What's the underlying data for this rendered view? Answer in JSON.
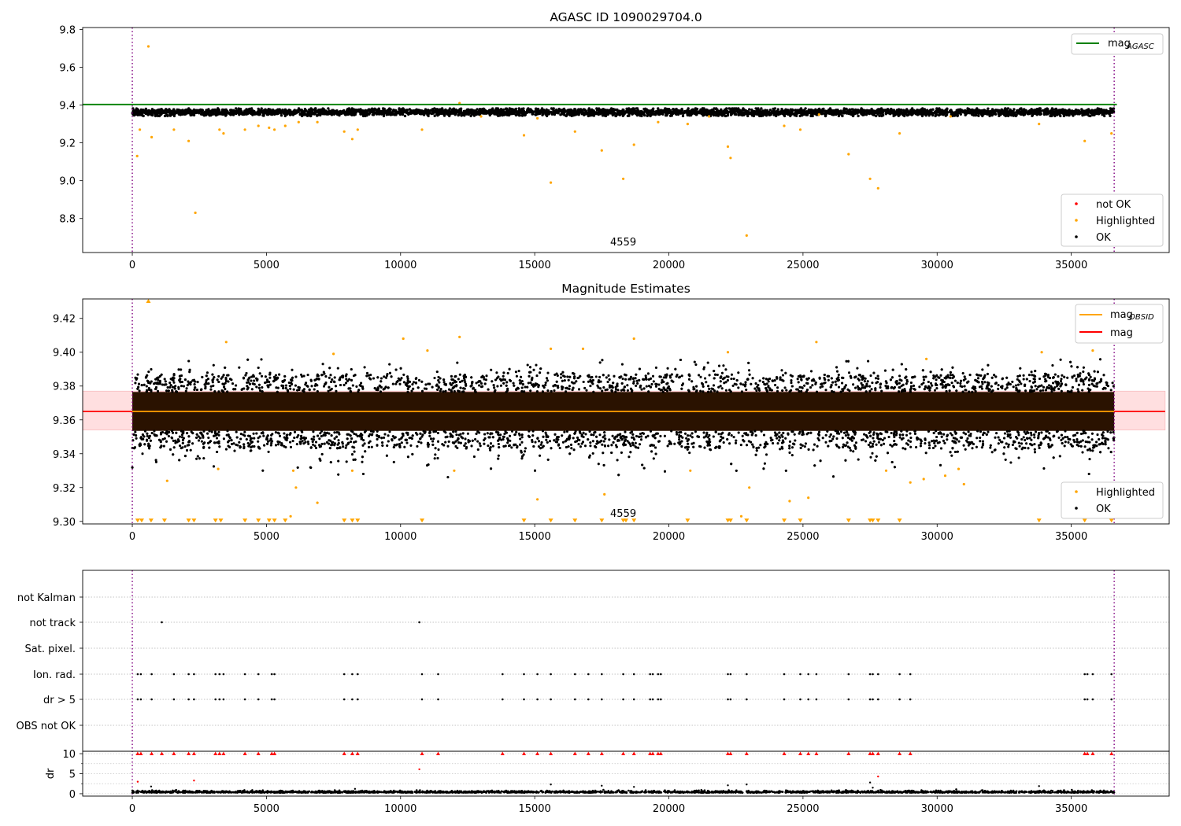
{
  "chart_data": [
    {
      "type": "scatter",
      "title": "AGASC ID 1090029704.0",
      "xlim": [
        -1850,
        38650
      ],
      "ylim": [
        8.62,
        9.81
      ],
      "xticks": [
        0,
        5000,
        10000,
        15000,
        20000,
        25000,
        30000,
        35000,
        40000
      ],
      "xtick_labels": [
        "0",
        "5000",
        "10000",
        "15000",
        "20000",
        "25000",
        "30000",
        "35000",
        "40000"
      ],
      "yticks": [
        8.8,
        9.0,
        9.2,
        9.4,
        9.6,
        9.8
      ],
      "ytick_labels": [
        "8.8",
        "9.0",
        "9.2",
        "9.4",
        "9.6",
        "9.8"
      ],
      "vlines": [
        0,
        36600
      ],
      "annotation": {
        "text": "4559",
        "x": 18300
      },
      "lines": [
        {
          "name": "mag",
          "name_sub": "AGASC",
          "y": 9.403,
          "x0": -1850,
          "x1": 36700,
          "color": "#008000"
        }
      ],
      "ok_band": {
        "center": 9.362,
        "spread": 0.018,
        "span": [
          0,
          36600
        ]
      },
      "highlighted_points": [
        {
          "x": 600,
          "y": 9.71
        },
        {
          "x": 180,
          "y": 9.13
        },
        {
          "x": 280,
          "y": 9.27
        },
        {
          "x": 720,
          "y": 9.23
        },
        {
          "x": 1550,
          "y": 9.27
        },
        {
          "x": 2100,
          "y": 9.21
        },
        {
          "x": 2350,
          "y": 8.83
        },
        {
          "x": 3250,
          "y": 9.27
        },
        {
          "x": 3400,
          "y": 9.25
        },
        {
          "x": 4200,
          "y": 9.27
        },
        {
          "x": 4700,
          "y": 9.29
        },
        {
          "x": 5100,
          "y": 9.28
        },
        {
          "x": 5300,
          "y": 9.27
        },
        {
          "x": 5700,
          "y": 9.29
        },
        {
          "x": 6200,
          "y": 9.31
        },
        {
          "x": 6900,
          "y": 9.31
        },
        {
          "x": 7900,
          "y": 9.26
        },
        {
          "x": 8200,
          "y": 9.22
        },
        {
          "x": 8400,
          "y": 9.27
        },
        {
          "x": 10800,
          "y": 9.27
        },
        {
          "x": 14600,
          "y": 9.24
        },
        {
          "x": 15100,
          "y": 9.33
        },
        {
          "x": 15600,
          "y": 8.99
        },
        {
          "x": 16500,
          "y": 9.26
        },
        {
          "x": 17500,
          "y": 9.16
        },
        {
          "x": 18300,
          "y": 9.01
        },
        {
          "x": 18700,
          "y": 9.19
        },
        {
          "x": 19600,
          "y": 9.31
        },
        {
          "x": 20700,
          "y": 9.3
        },
        {
          "x": 22200,
          "y": 9.18
        },
        {
          "x": 22300,
          "y": 9.12
        },
        {
          "x": 22900,
          "y": 8.71
        },
        {
          "x": 24300,
          "y": 9.29
        },
        {
          "x": 24900,
          "y": 9.27
        },
        {
          "x": 26700,
          "y": 9.14
        },
        {
          "x": 27500,
          "y": 9.01
        },
        {
          "x": 27800,
          "y": 8.96
        },
        {
          "x": 28600,
          "y": 9.25
        },
        {
          "x": 33800,
          "y": 9.3
        },
        {
          "x": 35500,
          "y": 9.21
        },
        {
          "x": 36500,
          "y": 9.25
        },
        {
          "x": 12200,
          "y": 9.41
        },
        {
          "x": 13000,
          "y": 9.34
        },
        {
          "x": 21500,
          "y": 9.34
        },
        {
          "x": 30500,
          "y": 9.34
        },
        {
          "x": 25600,
          "y": 9.35
        }
      ],
      "legend_top": [
        {
          "label": "mag",
          "sub": "AGASC",
          "color": "#008000",
          "kind": "line"
        }
      ],
      "legend_bottom": [
        {
          "label": "not OK",
          "color": "#ff0000",
          "kind": "dot"
        },
        {
          "label": "Highlighted",
          "color": "#ffa500",
          "kind": "dot"
        },
        {
          "label": "OK",
          "color": "#000000",
          "kind": "dot"
        }
      ]
    },
    {
      "type": "scatter",
      "title": "Magnitude Estimates",
      "xlim": [
        -1850,
        38650
      ],
      "ylim": [
        9.2985,
        9.4315
      ],
      "xticks": [
        0,
        5000,
        10000,
        15000,
        20000,
        25000,
        30000,
        35000,
        40000
      ],
      "xtick_labels": [
        "0",
        "5000",
        "10000",
        "15000",
        "20000",
        "25000",
        "30000",
        "35000",
        "40000"
      ],
      "yticks": [
        9.3,
        9.32,
        9.34,
        9.36,
        9.38,
        9.4,
        9.42
      ],
      "ytick_labels": [
        "9.30",
        "9.32",
        "9.34",
        "9.36",
        "9.38",
        "9.40",
        "9.42"
      ],
      "vlines": [
        0,
        36600
      ],
      "annotation": {
        "text": "4559",
        "x": 18300
      },
      "lines": [
        {
          "name": "mag",
          "y": 9.365,
          "x0": -1850,
          "x1": 38500,
          "color": "#ff0000"
        },
        {
          "name": "mag",
          "name_sub": "OBSID",
          "y": 9.365,
          "x0": 0,
          "x1": 36600,
          "color": "#ffa500"
        }
      ],
      "mag_band": {
        "y0": 9.354,
        "y1": 9.377,
        "x0": -1850,
        "x1": 38500,
        "color": "#ffdfe0"
      },
      "ok_band": {
        "center": 9.365,
        "spread": 0.0115,
        "span": [
          0,
          36600
        ]
      },
      "highlighted_points": [
        {
          "x": 600,
          "y": 9.43
        },
        {
          "x": 3500,
          "y": 9.406
        },
        {
          "x": 10100,
          "y": 9.408
        },
        {
          "x": 12200,
          "y": 9.409
        },
        {
          "x": 18700,
          "y": 9.408
        },
        {
          "x": 25500,
          "y": 9.406
        },
        {
          "x": 15600,
          "y": 9.402
        },
        {
          "x": 16800,
          "y": 9.402
        },
        {
          "x": 11000,
          "y": 9.401
        },
        {
          "x": 7500,
          "y": 9.399
        },
        {
          "x": 22200,
          "y": 9.4
        },
        {
          "x": 35800,
          "y": 9.401
        },
        {
          "x": 33900,
          "y": 9.4
        },
        {
          "x": 29600,
          "y": 9.396
        },
        {
          "x": 6000,
          "y": 9.33
        },
        {
          "x": 1300,
          "y": 9.324
        },
        {
          "x": 6100,
          "y": 9.32
        },
        {
          "x": 6900,
          "y": 9.311
        },
        {
          "x": 15100,
          "y": 9.313
        },
        {
          "x": 17600,
          "y": 9.316
        },
        {
          "x": 23000,
          "y": 9.32
        },
        {
          "x": 24500,
          "y": 9.312
        },
        {
          "x": 25200,
          "y": 9.314
        },
        {
          "x": 5900,
          "y": 9.303
        },
        {
          "x": 22700,
          "y": 9.303
        },
        {
          "x": 29000,
          "y": 9.323
        },
        {
          "x": 29500,
          "y": 9.325
        },
        {
          "x": 30300,
          "y": 9.327
        },
        {
          "x": 31000,
          "y": 9.322
        },
        {
          "x": 30800,
          "y": 9.331
        },
        {
          "x": 28100,
          "y": 9.33
        },
        {
          "x": 12000,
          "y": 9.33
        },
        {
          "x": 3200,
          "y": 9.331
        },
        {
          "x": 8200,
          "y": 9.33
        },
        {
          "x": 20800,
          "y": 9.33
        }
      ],
      "floor_markers_x": [
        200,
        350,
        700,
        1200,
        2100,
        2300,
        3100,
        3300,
        4200,
        4700,
        5100,
        5300,
        5700,
        7900,
        8200,
        8400,
        10800,
        14600,
        15600,
        16500,
        17500,
        18300,
        18400,
        18700,
        20700,
        22200,
        22300,
        22900,
        24300,
        24900,
        26700,
        27500,
        27600,
        27800,
        28600,
        33800,
        35500,
        36500
      ],
      "legend_top": [
        {
          "label": "mag",
          "sub": "OBSID",
          "color": "#ffa500",
          "kind": "line"
        },
        {
          "label": "mag",
          "color": "#ff0000",
          "kind": "line"
        }
      ],
      "legend_bottom": [
        {
          "label": "Highlighted",
          "color": "#ffa500",
          "kind": "dot"
        },
        {
          "label": "OK",
          "color": "#000000",
          "kind": "dot"
        }
      ]
    },
    {
      "type": "scatter",
      "title": "",
      "categories": [
        "not Kalman",
        "not track",
        "Sat. pixel.",
        "Ion. rad.",
        "dr > 5",
        "OBS not OK"
      ],
      "flag_points": {
        "not track": [
          1100,
          10700
        ],
        "Ion. rad.": [
          200,
          320,
          720,
          1550,
          2100,
          2300,
          3100,
          3250,
          3400,
          4200,
          4700,
          5200,
          5300,
          7900,
          8200,
          8400,
          10800,
          11400,
          13800,
          14600,
          15100,
          15600,
          16500,
          17000,
          17500,
          18300,
          18700,
          19300,
          19400,
          19600,
          19700,
          22200,
          22300,
          22900,
          24300,
          24900,
          25200,
          25500,
          26700,
          27500,
          27600,
          27800,
          28600,
          29000,
          35500,
          35600,
          35800,
          36500
        ],
        "dr > 5": [
          200,
          320,
          720,
          1550,
          2100,
          2300,
          3100,
          3250,
          3400,
          4200,
          4700,
          5200,
          5300,
          7900,
          8200,
          8400,
          10800,
          11400,
          13800,
          14600,
          15100,
          15600,
          16500,
          17000,
          17500,
          18300,
          18700,
          19300,
          19400,
          19600,
          19700,
          22200,
          22300,
          22900,
          24300,
          24900,
          25200,
          25500,
          26700,
          27500,
          27600,
          27800,
          28600,
          29000,
          35500,
          35600,
          35800,
          36500
        ]
      },
      "vlines": [
        0,
        36600
      ]
    },
    {
      "type": "scatter",
      "title": "",
      "ylabel": "dr",
      "xlim": [
        -1850,
        38650
      ],
      "ylim": [
        -0.6,
        10.6
      ],
      "yticks": [
        0,
        5,
        10
      ],
      "ytick_labels": [
        "0",
        "5",
        "10"
      ],
      "xticks": [
        0,
        5000,
        10000,
        15000,
        20000,
        25000,
        30000,
        35000,
        40000
      ],
      "xtick_labels": [
        "0",
        "5000",
        "10000",
        "15000",
        "20000",
        "25000",
        "30000",
        "35000",
        "40000"
      ],
      "vlines": [
        0,
        36600
      ],
      "clipped_at_10_x": [
        200,
        320,
        720,
        1100,
        1550,
        2100,
        2300,
        3100,
        3250,
        3400,
        4200,
        4700,
        5200,
        5300,
        7900,
        8200,
        8400,
        10800,
        11400,
        13800,
        14600,
        15100,
        15600,
        16500,
        17000,
        17500,
        18300,
        18700,
        19300,
        19400,
        19600,
        19700,
        22200,
        22300,
        22900,
        24300,
        24900,
        25200,
        25500,
        26700,
        27500,
        27600,
        27800,
        28600,
        29000,
        35500,
        35600,
        35800,
        36500
      ],
      "red_points": [
        {
          "x": 10700,
          "y": 6.1
        },
        {
          "x": 27800,
          "y": 4.3
        },
        {
          "x": 200,
          "y": 3.0
        },
        {
          "x": 2300,
          "y": 3.3
        }
      ],
      "black_outliers": [
        {
          "x": 700,
          "y": 1.8
        },
        {
          "x": 15600,
          "y": 2.3
        },
        {
          "x": 17500,
          "y": 2.0
        },
        {
          "x": 18700,
          "y": 1.7
        },
        {
          "x": 22200,
          "y": 2.1
        },
        {
          "x": 22900,
          "y": 2.3
        },
        {
          "x": 27500,
          "y": 2.8
        },
        {
          "x": 33800,
          "y": 1.9
        },
        {
          "x": 27600,
          "y": 1.5
        },
        {
          "x": 8300,
          "y": 1.2
        }
      ],
      "ok_band": {
        "center": 0.25,
        "spread": 0.22,
        "span": [
          0,
          36600
        ]
      }
    }
  ]
}
